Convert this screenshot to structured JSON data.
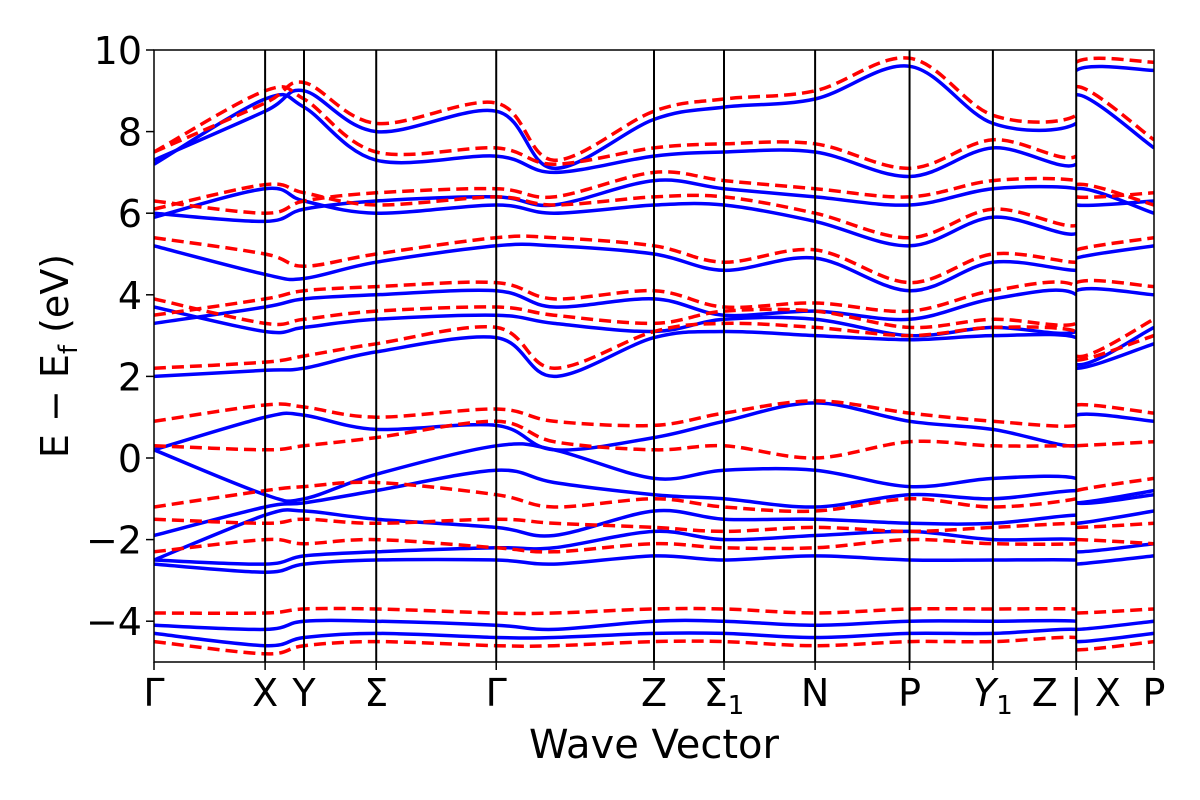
{
  "chart_data": {
    "type": "line",
    "title": "",
    "xlabel": "Wave Vector",
    "ylabel_main": "E − E",
    "ylabel_sub": "f",
    "ylabel_unit": " (eV)",
    "ylim": [
      -5,
      10
    ],
    "yticks": [
      {
        "value": 10,
        "label": "10"
      },
      {
        "value": 8,
        "label": "8"
      },
      {
        "value": 6,
        "label": "6"
      },
      {
        "value": 4,
        "label": "4"
      },
      {
        "value": 2,
        "label": "2"
      },
      {
        "value": 0,
        "label": "0"
      },
      {
        "value": -2,
        "label": "−2"
      },
      {
        "value": -4,
        "label": "−4"
      }
    ],
    "xlim": [
      0,
      9.0
    ],
    "kpoints": [
      {
        "x": 0.0,
        "label": "Γ",
        "sub": ""
      },
      {
        "x": 1.0,
        "label": "X",
        "sub": ""
      },
      {
        "x": 1.35,
        "label": "Y",
        "sub": ""
      },
      {
        "x": 2.0,
        "label": "Σ",
        "sub": ""
      },
      {
        "x": 3.08,
        "label": "Γ",
        "sub": ""
      },
      {
        "x": 4.5,
        "label": "Z",
        "sub": ""
      },
      {
        "x": 5.13,
        "label": "Σ",
        "sub": "1"
      },
      {
        "x": 5.95,
        "label": "N",
        "sub": ""
      },
      {
        "x": 6.8,
        "label": "P",
        "sub": ""
      },
      {
        "x": 7.55,
        "label": "Y",
        "sub": "1",
        "italic": true
      },
      {
        "x": 8.3,
        "label": "Z | X",
        "sub": ""
      },
      {
        "x": 9.0,
        "label": "P",
        "sub": ""
      }
    ],
    "series_styles": [
      {
        "color": "#ff0000",
        "dash": "dashed"
      },
      {
        "color": "#0000ff",
        "dash": "solid"
      }
    ],
    "series": [
      {
        "color": "#0000ff",
        "style": "solid",
        "bands": [
          [
            2.0,
            2.15,
            2.2,
            2.6,
            2.95,
            2.0,
            2.95,
            3.1,
            3.0,
            2.9,
            3.0,
            2.95,
            2.2,
            2.8
          ],
          [
            3.3,
            3.7,
            3.9,
            4.0,
            4.1,
            3.7,
            3.9,
            3.5,
            3.6,
            3.4,
            3.9,
            4.0,
            2.3,
            3.2
          ],
          [
            3.7,
            3.1,
            3.2,
            3.4,
            3.5,
            3.3,
            3.1,
            3.4,
            3.4,
            3.0,
            3.2,
            3.1,
            4.1,
            4.0
          ],
          [
            5.2,
            4.5,
            4.4,
            4.8,
            5.2,
            5.2,
            5.0,
            4.6,
            4.9,
            4.1,
            4.8,
            4.6,
            4.9,
            5.2
          ],
          [
            5.9,
            6.6,
            6.3,
            6.0,
            6.2,
            6.0,
            6.2,
            6.2,
            5.8,
            5.2,
            5.9,
            5.5,
            6.6,
            6.0
          ],
          [
            6.0,
            5.8,
            6.1,
            6.3,
            6.4,
            6.2,
            6.8,
            6.6,
            6.4,
            6.2,
            6.6,
            6.6,
            6.2,
            6.3
          ],
          [
            7.2,
            8.8,
            8.6,
            7.3,
            7.4,
            7.0,
            7.4,
            7.5,
            7.5,
            6.9,
            7.6,
            7.2,
            8.9,
            7.6
          ],
          [
            7.3,
            8.5,
            9.0,
            8.0,
            8.5,
            7.1,
            8.3,
            8.6,
            8.8,
            9.6,
            8.2,
            8.2,
            9.5,
            9.5
          ],
          [
            0.2,
            1.0,
            1.05,
            0.7,
            0.8,
            0.2,
            0.5,
            0.9,
            1.35,
            0.9,
            0.7,
            0.3,
            1.05,
            0.9
          ],
          [
            0.2,
            -0.9,
            -1.0,
            -0.4,
            0.3,
            0.2,
            -0.5,
            -0.3,
            -0.3,
            -0.7,
            -0.5,
            -0.5,
            -1.1,
            -0.9
          ],
          [
            -1.9,
            -1.2,
            -1.1,
            -0.8,
            -0.3,
            -0.6,
            -0.9,
            -1.0,
            -1.2,
            -0.9,
            -1.0,
            -0.8,
            -1.1,
            -0.8
          ],
          [
            -2.5,
            -1.4,
            -1.3,
            -1.5,
            -1.7,
            -1.9,
            -1.3,
            -1.5,
            -1.5,
            -1.6,
            -1.6,
            -1.4,
            -1.6,
            -1.3
          ],
          [
            -2.5,
            -2.6,
            -2.4,
            -2.3,
            -2.2,
            -2.2,
            -1.8,
            -2.0,
            -1.9,
            -1.8,
            -2.0,
            -2.0,
            -2.3,
            -2.1
          ],
          [
            -2.6,
            -2.8,
            -2.6,
            -2.5,
            -2.5,
            -2.6,
            -2.4,
            -2.5,
            -2.4,
            -2.5,
            -2.5,
            -2.5,
            -2.6,
            -2.4
          ],
          [
            -4.1,
            -4.2,
            -4.0,
            -4.0,
            -4.1,
            -4.2,
            -4.0,
            -4.0,
            -4.1,
            -4.0,
            -4.0,
            -4.0,
            -4.2,
            -4.0
          ],
          [
            -4.3,
            -4.6,
            -4.4,
            -4.3,
            -4.4,
            -4.4,
            -4.3,
            -4.3,
            -4.4,
            -4.3,
            -4.3,
            -4.2,
            -4.5,
            -4.3
          ]
        ]
      },
      {
        "color": "#ff0000",
        "style": "dashed",
        "bands": [
          [
            2.2,
            2.35,
            2.5,
            2.8,
            3.2,
            2.2,
            3.1,
            3.3,
            3.2,
            3.0,
            3.2,
            3.1,
            2.4,
            3.0
          ],
          [
            3.5,
            3.9,
            4.1,
            4.2,
            4.3,
            3.9,
            4.1,
            3.7,
            3.8,
            3.6,
            4.1,
            4.2,
            2.5,
            3.4
          ],
          [
            3.9,
            3.3,
            3.4,
            3.6,
            3.7,
            3.5,
            3.3,
            3.6,
            3.6,
            3.2,
            3.4,
            3.3,
            4.3,
            4.2
          ],
          [
            5.4,
            5.0,
            4.7,
            5.0,
            5.4,
            5.4,
            5.2,
            4.8,
            5.1,
            4.3,
            5.0,
            4.8,
            5.1,
            5.4
          ],
          [
            6.1,
            6.7,
            6.5,
            6.2,
            6.4,
            6.2,
            6.4,
            6.4,
            6.0,
            5.4,
            6.1,
            5.7,
            6.7,
            6.2
          ],
          [
            6.3,
            6.0,
            6.3,
            6.5,
            6.6,
            6.4,
            7.0,
            6.8,
            6.6,
            6.4,
            6.8,
            6.8,
            6.4,
            6.5
          ],
          [
            7.5,
            9.0,
            8.8,
            7.5,
            7.6,
            7.2,
            7.6,
            7.7,
            7.7,
            7.1,
            7.8,
            7.4,
            9.1,
            7.8
          ],
          [
            7.5,
            8.7,
            9.2,
            8.2,
            8.7,
            7.3,
            8.5,
            8.8,
            9.0,
            9.8,
            8.4,
            8.4,
            9.7,
            9.7
          ],
          [
            0.9,
            1.3,
            1.25,
            1.0,
            1.2,
            0.9,
            0.8,
            1.1,
            1.4,
            1.1,
            0.9,
            0.8,
            1.3,
            1.1
          ],
          [
            0.3,
            0.2,
            0.3,
            0.5,
            0.9,
            0.4,
            0.2,
            0.3,
            0.0,
            0.4,
            0.3,
            0.3,
            0.3,
            0.4
          ],
          [
            -1.2,
            -0.8,
            -0.7,
            -0.6,
            -0.9,
            -1.2,
            -1.0,
            -1.2,
            -1.3,
            -1.0,
            -1.2,
            -1.0,
            -0.8,
            -0.5
          ],
          [
            -1.5,
            -1.6,
            -1.5,
            -1.6,
            -1.5,
            -1.6,
            -1.7,
            -1.8,
            -1.7,
            -1.8,
            -1.7,
            -1.6,
            -1.7,
            -1.6
          ],
          [
            -2.3,
            -2.0,
            -2.1,
            -2.0,
            -2.2,
            -2.3,
            -2.1,
            -2.2,
            -2.2,
            -2.0,
            -2.1,
            -2.1,
            -2.0,
            -2.1
          ],
          [
            -3.8,
            -3.8,
            -3.7,
            -3.7,
            -3.8,
            -3.8,
            -3.7,
            -3.7,
            -3.8,
            -3.7,
            -3.7,
            -3.7,
            -3.8,
            -3.7
          ],
          [
            -4.5,
            -4.8,
            -4.6,
            -4.5,
            -4.6,
            -4.6,
            -4.5,
            -4.5,
            -4.6,
            -4.5,
            -4.5,
            -4.4,
            -4.7,
            -4.5
          ]
        ]
      }
    ]
  }
}
